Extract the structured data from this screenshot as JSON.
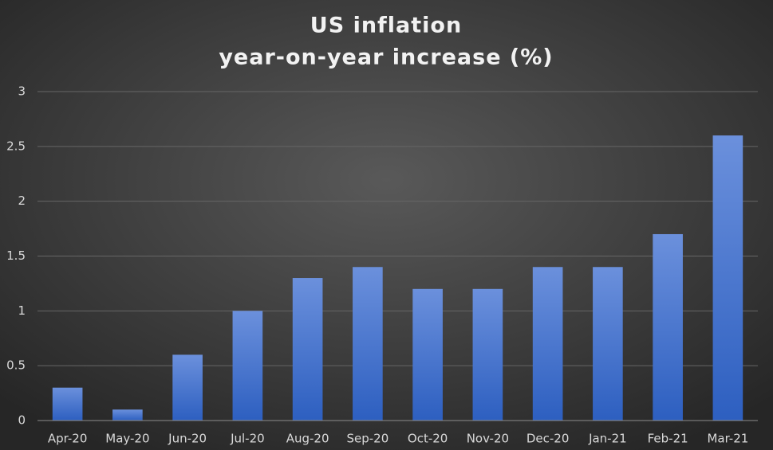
{
  "chart_data": {
    "type": "bar",
    "title": "US inflation",
    "subtitle": "year-on-year increase (%)",
    "categories": [
      "Apr-20",
      "May-20",
      "Jun-20",
      "Jul-20",
      "Aug-20",
      "Sep-20",
      "Oct-20",
      "Nov-20",
      "Dec-20",
      "Jan-21",
      "Feb-21",
      "Mar-21"
    ],
    "values": [
      0.3,
      0.1,
      0.6,
      1,
      1.3,
      1.4,
      1.2,
      1.2,
      1.4,
      1.4,
      1.7,
      2.6
    ],
    "color": "#4a78d2",
    "ylim": [
      0,
      3
    ],
    "yticks": [
      0,
      0.5,
      1,
      1.5,
      2,
      2.5,
      3
    ],
    "grid": true
  }
}
